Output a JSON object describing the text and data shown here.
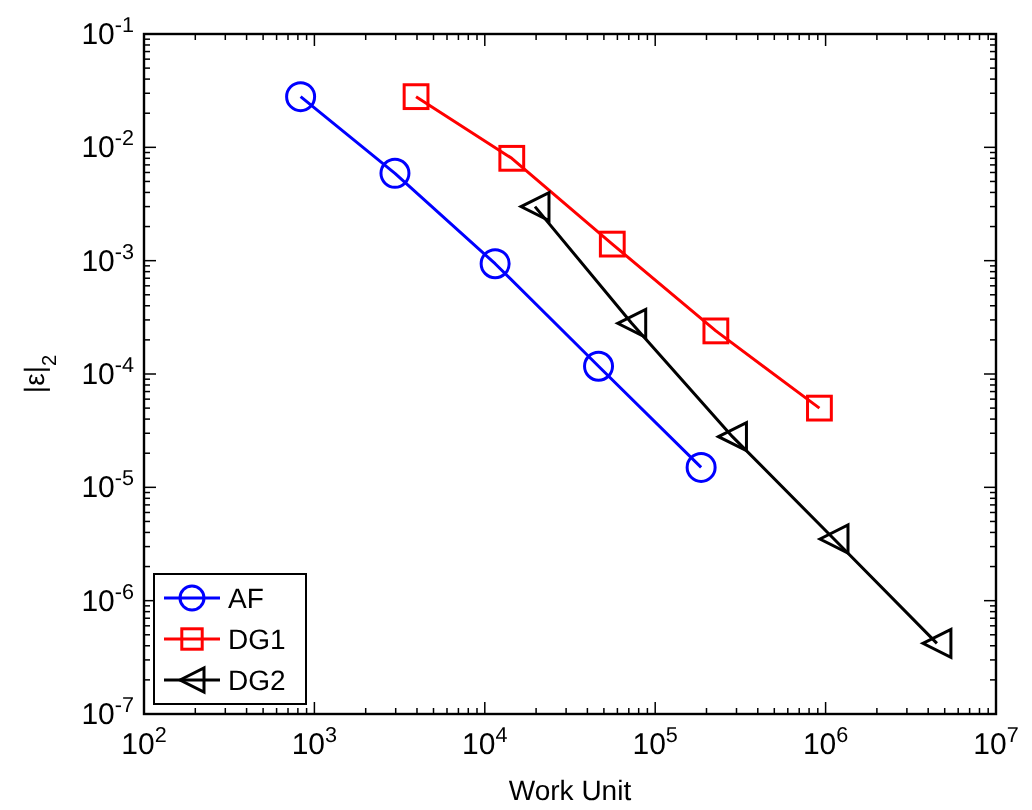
{
  "chart_data": {
    "type": "line",
    "xlabel": "Work Unit",
    "ylabel": "|ε|$_{2}$",
    "log": "xy",
    "grid": false,
    "legend": "bottom left",
    "line_style": "solid",
    "xlim": [
      100,
      10000000
    ],
    "ylim": [
      1e-07,
      0.1
    ],
    "xticks": [
      {
        "value": 100,
        "label": "10$^{2}$"
      },
      {
        "value": 1000,
        "label": "10$^{3}$"
      },
      {
        "value": 10000,
        "label": "10$^{4}$"
      },
      {
        "value": 100000,
        "label": "10$^{5}$"
      },
      {
        "value": 1000000,
        "label": "10$^{6}$"
      },
      {
        "value": 10000000,
        "label": "10$^{7}$"
      }
    ],
    "yticks": [
      {
        "value": 1e-07,
        "label": "10$^{-7}$"
      },
      {
        "value": 1e-06,
        "label": "10$^{-6}$"
      },
      {
        "value": 1e-05,
        "label": "10$^{-5}$"
      },
      {
        "value": 0.0001,
        "label": "10$^{-4}$"
      },
      {
        "value": 0.001,
        "label": "10$^{-3}$"
      },
      {
        "value": 0.01,
        "label": "10$^{-2}$"
      },
      {
        "value": 0.1,
        "label": "10$^{-1}$"
      }
    ],
    "series": [
      {
        "name": "AF",
        "color": "#0000ff",
        "marker": "circle",
        "x": [
          830,
          2970,
          11500,
          46500,
          186000
        ],
        "values": [
          0.028,
          0.0059,
          0.00094,
          0.000117,
          1.5e-05
        ]
      },
      {
        "name": "DG1",
        "color": "#ff0000",
        "marker": "square",
        "x": [
          3950,
          14400,
          56000,
          227000,
          920000
        ],
        "values": [
          0.028,
          0.008,
          0.0014,
          0.00024,
          5e-05
        ]
      },
      {
        "name": "DG2",
        "color": "#000000",
        "marker": "triangle",
        "x": [
          19700,
          72800,
          284000,
          1120000,
          4500000
        ],
        "values": [
          0.003,
          0.00028,
          2.8e-05,
          3.5e-06,
          4.2e-07
        ]
      }
    ]
  }
}
